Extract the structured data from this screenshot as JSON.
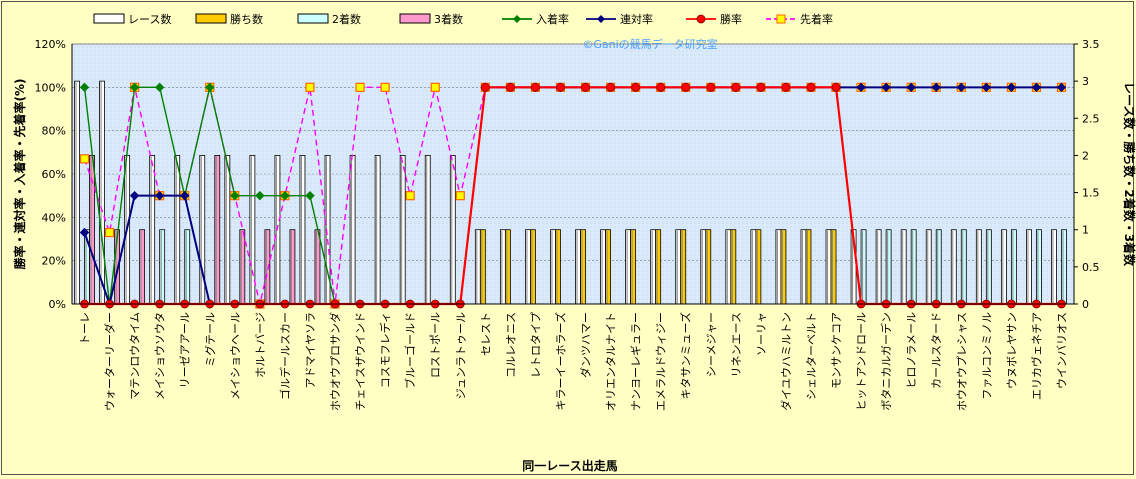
{
  "chart_data": {
    "type": "bar+line",
    "watermark": "©Ganiの競馬データ研究室",
    "xlabel": "同一レース出走馬",
    "ylabel_left": "勝率・連対率・入着率・先着率(%)",
    "ylabel_right": "レース数・勝ち数・2着数・3着数",
    "ylim_left": [
      0,
      120
    ],
    "ylim_right": [
      0,
      3.5
    ],
    "yticks_left": [
      "0%",
      "20%",
      "40%",
      "60%",
      "80%",
      "100%",
      "120%"
    ],
    "yticks_right": [
      "0",
      "0.5",
      "1",
      "1.5",
      "2",
      "2.5",
      "3",
      "3.5"
    ],
    "grid": true,
    "legend_position": "top",
    "categories": [
      "トーレ",
      "ウォーターリーダー",
      "マテンロウタイム",
      "メイショウソウタ",
      "リーゼアアール",
      "ミグテール",
      "メイショウヘール",
      "ホルトバージ",
      "ゴルデールスカー",
      "アドマイヤソラ",
      "ホウオウプロサンダ",
      "チェイスザウインド",
      "コスモフレディ",
      "ブルーゴールド",
      "ロストポール",
      "ジュンラトゥール",
      "セレスト",
      "コルレオニス",
      "レトロタイプ",
      "キラーイーホラーズ",
      "ダンツハマー",
      "オリエンタルナイト",
      "ナンヨーレギュラー",
      "エメラルドウィジー",
      "キタサンミューズ",
      "シーメジャー",
      "リネンエース",
      "ソーリャ",
      "ダイユウハミルトン",
      "シェルターベルト",
      "モンサンケコア",
      "ヒットアンドロール",
      "ボタニカルガーデン",
      "ヒロノラメール",
      "カールスタード",
      "ホウオウプレシャス",
      "ファルコンミノル",
      "ウヌボレヤサン",
      "エリカヴェネチア",
      "ウインバリオス"
    ],
    "series": [
      {
        "name": "レース数",
        "axis": "right",
        "kind": "bar",
        "color": "#ffffff",
        "values": [
          3,
          3,
          2,
          2,
          2,
          2,
          2,
          2,
          2,
          2,
          2,
          2,
          2,
          2,
          2,
          2,
          1,
          1,
          1,
          1,
          1,
          1,
          1,
          1,
          1,
          1,
          1,
          1,
          1,
          1,
          1,
          1,
          1,
          1,
          1,
          1,
          1,
          1,
          1,
          1
        ]
      },
      {
        "name": "勝ち数",
        "axis": "right",
        "kind": "bar",
        "color": "#ffcc00",
        "values": [
          0,
          0,
          0,
          0,
          0,
          0,
          0,
          0,
          0,
          0,
          0,
          0,
          0,
          0,
          0,
          0,
          1,
          1,
          1,
          1,
          1,
          1,
          1,
          1,
          1,
          1,
          1,
          1,
          1,
          1,
          1,
          0,
          0,
          0,
          0,
          0,
          0,
          0,
          0,
          0
        ]
      },
      {
        "name": "2着数",
        "axis": "right",
        "kind": "bar",
        "color": "#ccffff",
        "values": [
          1,
          0,
          0,
          1,
          1,
          0,
          0,
          0,
          0,
          0,
          0,
          0,
          0,
          0,
          0,
          0,
          0,
          0,
          0,
          0,
          0,
          0,
          0,
          0,
          0,
          0,
          0,
          0,
          0,
          0,
          0,
          1,
          1,
          1,
          1,
          1,
          1,
          1,
          1,
          1
        ]
      },
      {
        "name": "3着数",
        "axis": "right",
        "kind": "bar",
        "color": "#ff99cc",
        "values": [
          2,
          1,
          1,
          0,
          0,
          2,
          1,
          1,
          1,
          1,
          0,
          0,
          0,
          0,
          0,
          0,
          0,
          0,
          0,
          0,
          0,
          0,
          0,
          0,
          0,
          0,
          0,
          0,
          0,
          0,
          0,
          0,
          0,
          0,
          0,
          0,
          0,
          0,
          0,
          0
        ]
      },
      {
        "name": "入着率",
        "axis": "left",
        "kind": "line",
        "color": "#008000",
        "marker": "diamond",
        "values": [
          100,
          0,
          100,
          100,
          50,
          100,
          50,
          50,
          50,
          50,
          0,
          null,
          null,
          null,
          null,
          null,
          null,
          null,
          null,
          null,
          null,
          null,
          null,
          null,
          null,
          null,
          null,
          null,
          null,
          null,
          null,
          null,
          null,
          null,
          null,
          null,
          null,
          null,
          null,
          null
        ]
      },
      {
        "name": "連対率",
        "axis": "left",
        "kind": "line",
        "color": "#000080",
        "marker": "diamond",
        "values": [
          33,
          0,
          50,
          50,
          50,
          0,
          null,
          null,
          null,
          null,
          null,
          null,
          null,
          null,
          null,
          null,
          100,
          100,
          100,
          100,
          100,
          100,
          100,
          100,
          100,
          100,
          100,
          100,
          100,
          100,
          100,
          100,
          100,
          100,
          100,
          100,
          100,
          100,
          100,
          100
        ]
      },
      {
        "name": "勝率",
        "axis": "left",
        "kind": "line",
        "color": "#ff0000",
        "marker": "circle",
        "values": [
          0,
          0,
          0,
          0,
          0,
          0,
          0,
          0,
          0,
          0,
          0,
          0,
          0,
          0,
          0,
          0,
          100,
          100,
          100,
          100,
          100,
          100,
          100,
          100,
          100,
          100,
          100,
          100,
          100,
          100,
          100,
          0,
          0,
          0,
          0,
          0,
          0,
          0,
          0,
          0
        ]
      },
      {
        "name": "先着率",
        "axis": "left",
        "kind": "line",
        "color": "#ff00ff",
        "dash": true,
        "marker": "square",
        "values": [
          67,
          33,
          100,
          50,
          50,
          100,
          50,
          0,
          50,
          100,
          0,
          100,
          100,
          50,
          100,
          50,
          100,
          100,
          100,
          100,
          100,
          100,
          100,
          100,
          100,
          100,
          100,
          100,
          100,
          100,
          100,
          100,
          100,
          100,
          100,
          100,
          100,
          100,
          100,
          100
        ]
      }
    ]
  }
}
